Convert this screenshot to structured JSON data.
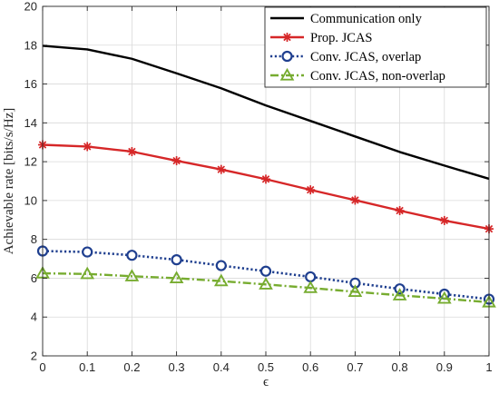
{
  "chart_data": {
    "type": "line",
    "xlabel": "ϵ",
    "ylabel": "Achievable rate [bits/s/Hz]",
    "xlim": [
      0,
      1
    ],
    "ylim": [
      2,
      20
    ],
    "xticks": [
      "0",
      "0.1",
      "0.2",
      "0.3",
      "0.4",
      "0.5",
      "0.6",
      "0.7",
      "0.8",
      "0.9",
      "1"
    ],
    "yticks": [
      "2",
      "4",
      "6",
      "8",
      "10",
      "12",
      "14",
      "16",
      "18",
      "20"
    ],
    "grid": true,
    "legend_position": "top-right",
    "x": [
      0,
      0.1,
      0.2,
      0.3,
      0.4,
      0.5,
      0.6,
      0.7,
      0.8,
      0.9,
      1
    ],
    "series": [
      {
        "name": "Communication only",
        "color": "#000000",
        "line_style": "solid",
        "marker": "none",
        "values": [
          17.97,
          17.78,
          17.3,
          16.55,
          15.78,
          14.9,
          14.1,
          13.3,
          12.5,
          11.8,
          11.12
        ]
      },
      {
        "name": "Prop. JCAS",
        "color": "#d62728",
        "line_style": "solid",
        "marker": "asterisk",
        "values": [
          12.87,
          12.78,
          12.52,
          12.05,
          11.6,
          11.1,
          10.55,
          10.02,
          9.48,
          8.97,
          8.54
        ]
      },
      {
        "name": "Conv. JCAS, overlap",
        "color": "#1f3f8f",
        "line_style": "dotted",
        "marker": "circle",
        "values": [
          7.4,
          7.35,
          7.18,
          6.95,
          6.65,
          6.36,
          6.07,
          5.75,
          5.45,
          5.18,
          4.92
        ]
      },
      {
        "name": "Conv. JCAS, non-overlap",
        "color": "#77ac30",
        "line_style": "dashdot",
        "marker": "triangle",
        "values": [
          6.25,
          6.22,
          6.1,
          6.0,
          5.85,
          5.68,
          5.5,
          5.3,
          5.12,
          4.95,
          4.76
        ]
      }
    ]
  }
}
